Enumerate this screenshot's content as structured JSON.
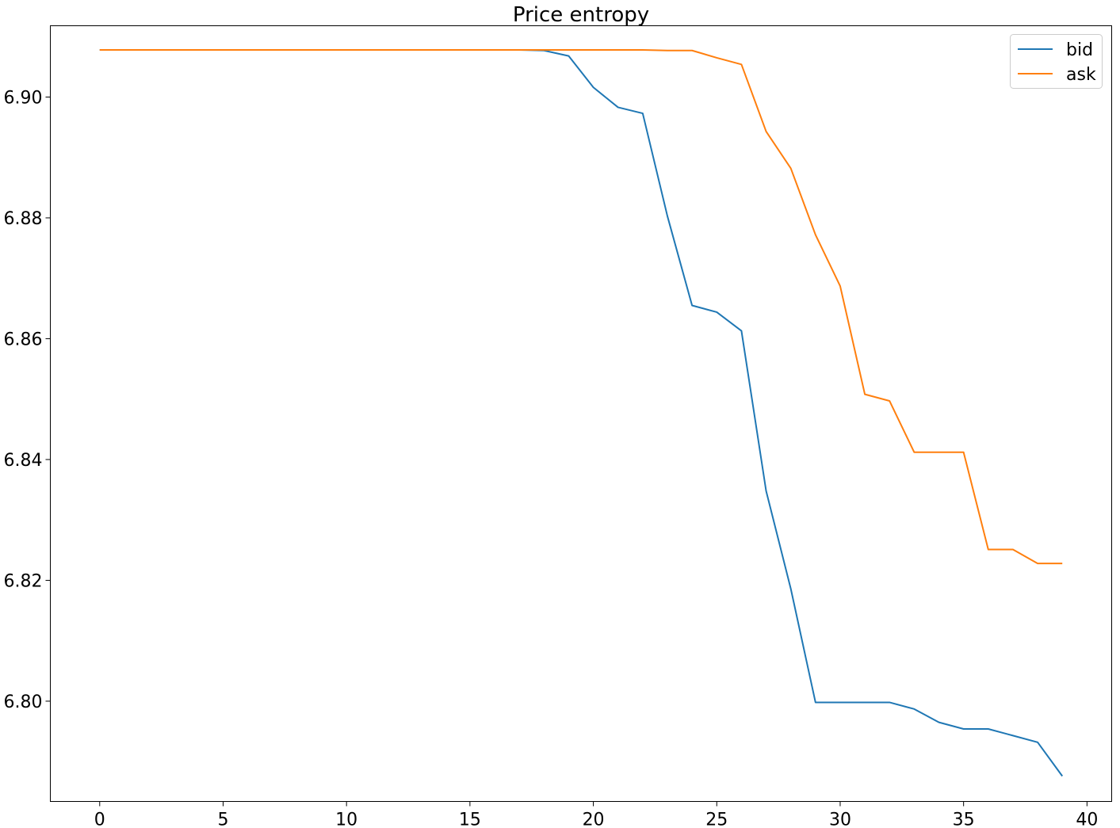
{
  "chart_data": {
    "type": "line",
    "title": "Price entropy",
    "xlabel": "",
    "ylabel": "",
    "xlim": [
      -2,
      41
    ],
    "ylim": [
      6.7834,
      6.9118
    ],
    "xticks": [
      0,
      5,
      10,
      15,
      20,
      25,
      30,
      35,
      40
    ],
    "xtick_labels": [
      "0",
      "5",
      "10",
      "15",
      "20",
      "25",
      "30",
      "35",
      "40"
    ],
    "yticks": [
      6.8,
      6.82,
      6.84,
      6.86,
      6.88,
      6.9
    ],
    "ytick_labels": [
      "6.80",
      "6.82",
      "6.84",
      "6.86",
      "6.88",
      "6.90"
    ],
    "grid": false,
    "legend_position": "top-right",
    "x": [
      0,
      1,
      2,
      3,
      4,
      5,
      6,
      7,
      8,
      9,
      10,
      11,
      12,
      13,
      14,
      15,
      16,
      17,
      18,
      19,
      20,
      21,
      22,
      23,
      24,
      25,
      26,
      27,
      28,
      29,
      30,
      31,
      32,
      33,
      34,
      35,
      36,
      37,
      38,
      39
    ],
    "series": [
      {
        "name": "bid",
        "color": "#1f77b4",
        "values": [
          6.9078,
          6.9078,
          6.9078,
          6.9078,
          6.9078,
          6.9078,
          6.9078,
          6.9078,
          6.9078,
          6.9078,
          6.9078,
          6.9078,
          6.9078,
          6.9078,
          6.9078,
          6.9078,
          6.9078,
          6.9078,
          6.9077,
          6.9068,
          6.9016,
          6.8983,
          6.8973,
          6.8803,
          6.8655,
          6.8644,
          6.8613,
          6.8348,
          6.8186,
          6.7998,
          6.7998,
          6.7998,
          6.7998,
          6.7987,
          6.7965,
          6.7954,
          6.7954,
          6.7943,
          6.7932,
          6.7876
        ]
      },
      {
        "name": "ask",
        "color": "#ff7f0e",
        "values": [
          6.9078,
          6.9078,
          6.9078,
          6.9078,
          6.9078,
          6.9078,
          6.9078,
          6.9078,
          6.9078,
          6.9078,
          6.9078,
          6.9078,
          6.9078,
          6.9078,
          6.9078,
          6.9078,
          6.9078,
          6.9078,
          6.9078,
          6.9078,
          6.9078,
          6.9078,
          6.9078,
          6.9077,
          6.9077,
          6.9065,
          6.9054,
          6.8943,
          6.8882,
          6.8772,
          6.8687,
          6.8508,
          6.8497,
          6.8412,
          6.8412,
          6.8412,
          6.8251,
          6.8251,
          6.8228,
          6.8228
        ]
      }
    ]
  }
}
